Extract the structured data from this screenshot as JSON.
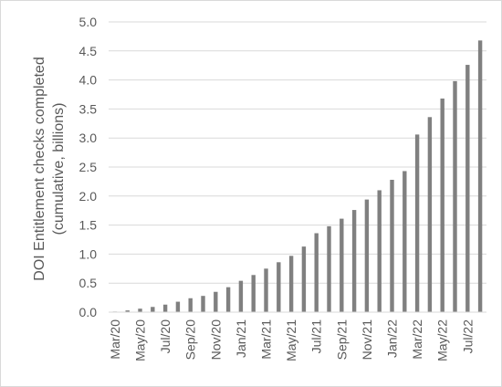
{
  "chart_data": {
    "type": "bar",
    "ylabel_lines": [
      "DOI Entitlement checks completed",
      "(cumulative, billions)"
    ],
    "ylim": [
      0,
      5.0
    ],
    "yticks": [
      "0.0",
      "0.5",
      "1.0",
      "1.5",
      "2.0",
      "2.5",
      "3.0",
      "3.5",
      "4.0",
      "4.5",
      "5.0"
    ],
    "grid": "horizontal",
    "legend": "none",
    "bar_color": "#808080",
    "categories": [
      "Mar/20",
      "Apr/20",
      "May/20",
      "Jun/20",
      "Jul/20",
      "Aug/20",
      "Sep/20",
      "Oct/20",
      "Nov/20",
      "Dec/20",
      "Jan/21",
      "Feb/21",
      "Mar/21",
      "Apr/21",
      "May/21",
      "Jun/21",
      "Jul/21",
      "Aug/21",
      "Sep/21",
      "Oct/21",
      "Nov/21",
      "Dec/21",
      "Jan/22",
      "Feb/22",
      "Mar/22",
      "Apr/22",
      "May/22",
      "Jun/22",
      "Jul/22",
      "Aug/22"
    ],
    "x_tick_labels": [
      "Mar/20",
      "May/20",
      "Jul/20",
      "Sep/20",
      "Nov/20",
      "Jan/21",
      "Mar/21",
      "May/21",
      "Jul/21",
      "Sep/21",
      "Nov/21",
      "Jan/22",
      "Mar/22",
      "May/22",
      "Jul/22"
    ],
    "values": [
      0.01,
      0.03,
      0.06,
      0.09,
      0.13,
      0.18,
      0.24,
      0.28,
      0.35,
      0.43,
      0.54,
      0.64,
      0.75,
      0.86,
      0.97,
      1.13,
      1.36,
      1.48,
      1.61,
      1.76,
      1.94,
      2.1,
      2.28,
      2.43,
      3.06,
      3.36,
      3.68,
      3.98,
      4.26,
      4.68
    ]
  }
}
